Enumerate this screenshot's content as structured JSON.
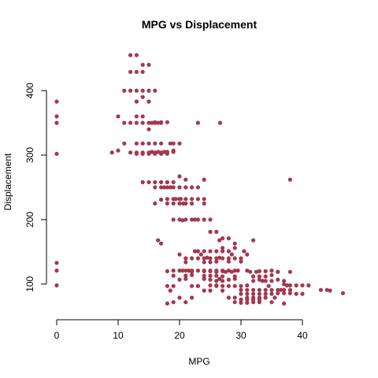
{
  "chart_data": {
    "type": "scatter",
    "title": "MPG vs Displacement",
    "xlabel": "MPG",
    "ylabel": "Displacement",
    "xlim": [
      0,
      46.6
    ],
    "ylim": [
      68,
      455
    ],
    "xticks": [
      0,
      10,
      20,
      30,
      40
    ],
    "yticks": [
      100,
      200,
      300,
      400
    ],
    "point_color": "#A3384F",
    "grid": false,
    "legend": "none",
    "points": [
      [
        0,
        383
      ],
      [
        0,
        360
      ],
      [
        0,
        350
      ],
      [
        0,
        302
      ],
      [
        0,
        133
      ],
      [
        0,
        121
      ],
      [
        0,
        98
      ],
      [
        12,
        455
      ],
      [
        13,
        455
      ],
      [
        14,
        440
      ],
      [
        15,
        440
      ],
      [
        12,
        429
      ],
      [
        13,
        429
      ],
      [
        14,
        429
      ],
      [
        11,
        400
      ],
      [
        12,
        400
      ],
      [
        13,
        400
      ],
      [
        14,
        400
      ],
      [
        15,
        400
      ],
      [
        16,
        400
      ],
      [
        14,
        390
      ],
      [
        15,
        383
      ],
      [
        13,
        383
      ],
      [
        11,
        350
      ],
      [
        12,
        350
      ],
      [
        13,
        350
      ],
      [
        14,
        350
      ],
      [
        15,
        350
      ],
      [
        16,
        350
      ],
      [
        17,
        350
      ],
      [
        15.5,
        350
      ],
      [
        16.5,
        350
      ],
      [
        18,
        351
      ],
      [
        10,
        360
      ],
      [
        13,
        360
      ],
      [
        14,
        360
      ],
      [
        15,
        340
      ],
      [
        16,
        351
      ],
      [
        17,
        351
      ],
      [
        23,
        350
      ],
      [
        26.6,
        350
      ],
      [
        9,
        304
      ],
      [
        10,
        307
      ],
      [
        11,
        318
      ],
      [
        13,
        318
      ],
      [
        14,
        318
      ],
      [
        15,
        318
      ],
      [
        16,
        318
      ],
      [
        17,
        318
      ],
      [
        13,
        302
      ],
      [
        14,
        302
      ],
      [
        15,
        302
      ],
      [
        16,
        302
      ],
      [
        17,
        302
      ],
      [
        18,
        302
      ],
      [
        12,
        304
      ],
      [
        13,
        304
      ],
      [
        14,
        304
      ],
      [
        15,
        304
      ],
      [
        16,
        304
      ],
      [
        17,
        304
      ],
      [
        18,
        305
      ],
      [
        19,
        305
      ],
      [
        18.5,
        318
      ],
      [
        19,
        318
      ],
      [
        20,
        318
      ],
      [
        19,
        307
      ],
      [
        15.5,
        305
      ],
      [
        16.5,
        305
      ],
      [
        17.5,
        305
      ],
      [
        14,
        258
      ],
      [
        15,
        258
      ],
      [
        16,
        258
      ],
      [
        17,
        258
      ],
      [
        18,
        258
      ],
      [
        19,
        258
      ],
      [
        17,
        250
      ],
      [
        18,
        250
      ],
      [
        19,
        250
      ],
      [
        20,
        250
      ],
      [
        21,
        250
      ],
      [
        22,
        250
      ],
      [
        16,
        250
      ],
      [
        18,
        232
      ],
      [
        19,
        232
      ],
      [
        20,
        232
      ],
      [
        21,
        232
      ],
      [
        22,
        232
      ],
      [
        23,
        232
      ],
      [
        24,
        232
      ],
      [
        18,
        225
      ],
      [
        19,
        225
      ],
      [
        20,
        225
      ],
      [
        21,
        225
      ],
      [
        22,
        225
      ],
      [
        16,
        225
      ],
      [
        17,
        231
      ],
      [
        20,
        200
      ],
      [
        21,
        200
      ],
      [
        22,
        200
      ],
      [
        19,
        200
      ],
      [
        23,
        200
      ],
      [
        24,
        200
      ],
      [
        25,
        200
      ],
      [
        22.5,
        200
      ],
      [
        20.5,
        199
      ],
      [
        20,
        267
      ],
      [
        21,
        262
      ],
      [
        24,
        262
      ],
      [
        38,
        262
      ],
      [
        18.5,
        250
      ],
      [
        17.5,
        250
      ],
      [
        20.2,
        232
      ],
      [
        19.4,
        232
      ],
      [
        20.6,
        225
      ],
      [
        23,
        250
      ],
      [
        24,
        225
      ],
      [
        25,
        181
      ],
      [
        26,
        181
      ],
      [
        27,
        171
      ],
      [
        28,
        171
      ],
      [
        29,
        163
      ],
      [
        26.5,
        168
      ],
      [
        16.5,
        168
      ],
      [
        17,
        163
      ],
      [
        32,
        168
      ],
      [
        27,
        156
      ],
      [
        29,
        156
      ],
      [
        27,
        151
      ],
      [
        28,
        151
      ],
      [
        23,
        151
      ],
      [
        24,
        151
      ],
      [
        25,
        151
      ],
      [
        26,
        151
      ],
      [
        21,
        140
      ],
      [
        22,
        140
      ],
      [
        23,
        140
      ],
      [
        24,
        140
      ],
      [
        25,
        140
      ],
      [
        26,
        140
      ],
      [
        27,
        140
      ],
      [
        28,
        140
      ],
      [
        29,
        140
      ],
      [
        30,
        140
      ],
      [
        31,
        146
      ],
      [
        21,
        134
      ],
      [
        24,
        134
      ],
      [
        25,
        134
      ],
      [
        26,
        135
      ],
      [
        30,
        135
      ],
      [
        28,
        135
      ],
      [
        19,
        121
      ],
      [
        20,
        121
      ],
      [
        21,
        121
      ],
      [
        22,
        121
      ],
      [
        23,
        121
      ],
      [
        24,
        121
      ],
      [
        25,
        121
      ],
      [
        26,
        121
      ],
      [
        27,
        121
      ],
      [
        28,
        121
      ],
      [
        29,
        121
      ],
      [
        31,
        121
      ],
      [
        18,
        120
      ],
      [
        22,
        119
      ],
      [
        24,
        120
      ],
      [
        25,
        120
      ],
      [
        26,
        119
      ],
      [
        27,
        120
      ],
      [
        33,
        120
      ],
      [
        34,
        120
      ],
      [
        35,
        121
      ],
      [
        36,
        119
      ],
      [
        19,
        113
      ],
      [
        21,
        113
      ],
      [
        22,
        114
      ],
      [
        24,
        113
      ],
      [
        25,
        113
      ],
      [
        26,
        113
      ],
      [
        27,
        112
      ],
      [
        29,
        112
      ],
      [
        32,
        112
      ],
      [
        33,
        112
      ],
      [
        34,
        112
      ],
      [
        36,
        119
      ],
      [
        18,
        97
      ],
      [
        19,
        97
      ],
      [
        20,
        107
      ],
      [
        21,
        108
      ],
      [
        22,
        97
      ],
      [
        23,
        97
      ],
      [
        24,
        108
      ],
      [
        25,
        107
      ],
      [
        26,
        105
      ],
      [
        27,
        105
      ],
      [
        28,
        107
      ],
      [
        29,
        108
      ],
      [
        30,
        97
      ],
      [
        31,
        98
      ],
      [
        32,
        105
      ],
      [
        33,
        107
      ],
      [
        34,
        105
      ],
      [
        35,
        105
      ],
      [
        36,
        107
      ],
      [
        37,
        100
      ],
      [
        38,
        98
      ],
      [
        39,
        98
      ],
      [
        40,
        98
      ],
      [
        41,
        98
      ],
      [
        25,
        98
      ],
      [
        26,
        98
      ],
      [
        27,
        97
      ],
      [
        28,
        97
      ],
      [
        29,
        97
      ],
      [
        30,
        91
      ],
      [
        31,
        91
      ],
      [
        32,
        91
      ],
      [
        33,
        91
      ],
      [
        34,
        91
      ],
      [
        35,
        91
      ],
      [
        36,
        91
      ],
      [
        37,
        91
      ],
      [
        38,
        91
      ],
      [
        39,
        85
      ],
      [
        40,
        85
      ],
      [
        43,
        91
      ],
      [
        44,
        91
      ],
      [
        44.5,
        90
      ],
      [
        46.6,
        86
      ],
      [
        30,
        85
      ],
      [
        31,
        85
      ],
      [
        32,
        85
      ],
      [
        33,
        85
      ],
      [
        34,
        85
      ],
      [
        35,
        85
      ],
      [
        36,
        86
      ],
      [
        37,
        86
      ],
      [
        38,
        86
      ],
      [
        28,
        79
      ],
      [
        29,
        79
      ],
      [
        31,
        79
      ],
      [
        32,
        79
      ],
      [
        33,
        79
      ],
      [
        34,
        79
      ],
      [
        30,
        76
      ],
      [
        31,
        76
      ],
      [
        32,
        76
      ],
      [
        33,
        76
      ],
      [
        29,
        72
      ],
      [
        30,
        71
      ],
      [
        31,
        71
      ],
      [
        32,
        72
      ],
      [
        33,
        72
      ],
      [
        35,
        72
      ],
      [
        37,
        70
      ],
      [
        27,
        90
      ],
      [
        26,
        97
      ],
      [
        25,
        90
      ],
      [
        24,
        90
      ],
      [
        23,
        97
      ],
      [
        22,
        79
      ],
      [
        21,
        72
      ],
      [
        20,
        79
      ],
      [
        19,
        72
      ],
      [
        18,
        70
      ],
      [
        18.5,
        90
      ],
      [
        24,
        108
      ],
      [
        26.5,
        108
      ],
      [
        27.5,
        119
      ],
      [
        28.5,
        119
      ],
      [
        29.5,
        121
      ],
      [
        24.5,
        141
      ],
      [
        26.5,
        141
      ],
      [
        28.5,
        146
      ],
      [
        30.5,
        151
      ],
      [
        23.5,
        146
      ],
      [
        22.5,
        151
      ],
      [
        20,
        146
      ],
      [
        20.5,
        121
      ],
      [
        21.5,
        121
      ],
      [
        37.5,
        98
      ],
      [
        36.5,
        91
      ],
      [
        35.5,
        79
      ],
      [
        34.5,
        97
      ],
      [
        32.5,
        119
      ],
      [
        31.5,
        119
      ],
      [
        33.5,
        105
      ],
      [
        37,
        105
      ],
      [
        38,
        119
      ],
      [
        35,
        114
      ]
    ]
  }
}
